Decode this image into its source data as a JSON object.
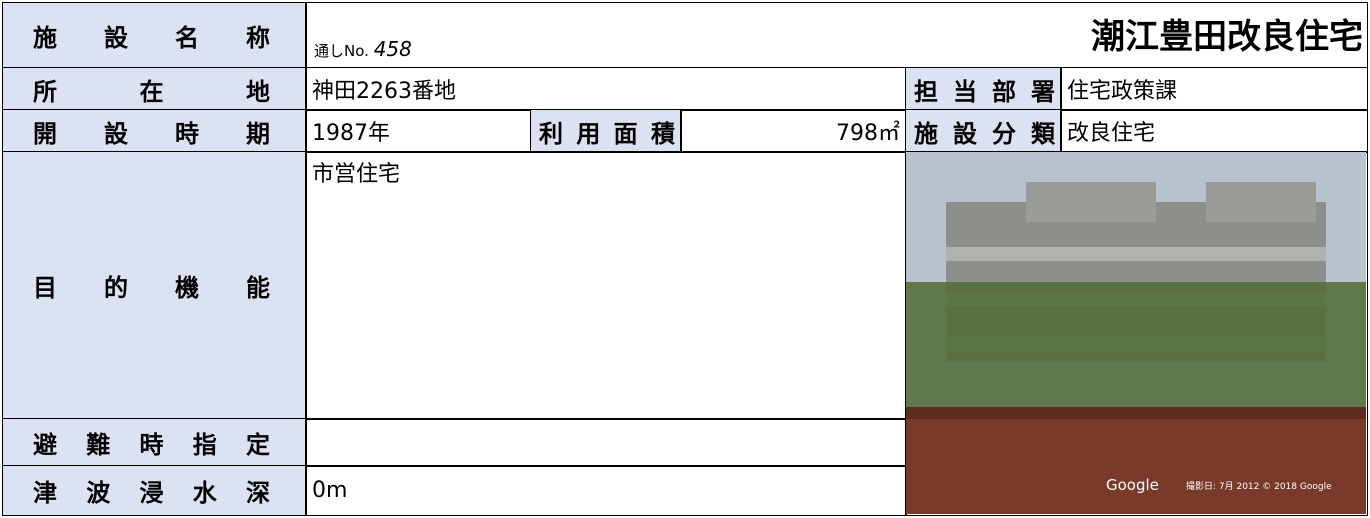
{
  "rows": [
    {
      "label": "施設名称",
      "serial_prefix": "通しNo.",
      "serial_number": "458",
      "value": "潮江豊田改良住宅"
    },
    {
      "label": "所在地",
      "value": "神田2263番地",
      "label2": "担当部署",
      "value2": "住宅政策課"
    },
    {
      "label": "開設時期",
      "value": "1987年",
      "label2": "利用面積",
      "value2": "798㎡",
      "label3": "施設分類",
      "value3": "改良住宅"
    },
    {
      "label": "目的機能",
      "value": "市営住宅"
    },
    {
      "label": "避難時指定"
    },
    {
      "label": "津波浸水深",
      "value": "0m"
    }
  ],
  "photo": {
    "brand": "Google",
    "credit": "撮影日: 7月 2012   © 2018 Google"
  }
}
